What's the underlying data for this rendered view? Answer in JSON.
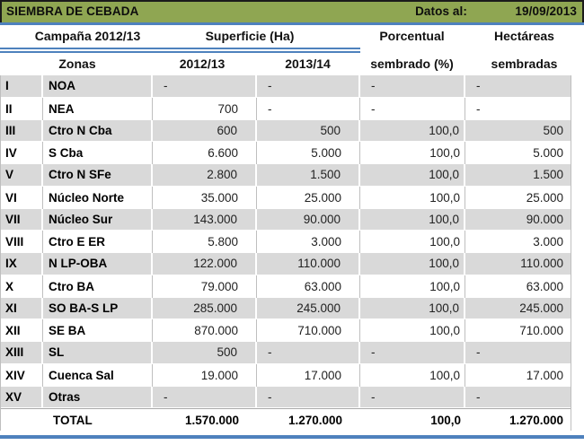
{
  "title_bar": {
    "title": "SIEMBRA DE CEBADA",
    "datos_label": "Datos al:",
    "date": "19/09/2013"
  },
  "header": {
    "campana": "Campaña 2012/13",
    "superficie": "Superficie (Ha)",
    "porcentual1": "Porcentual",
    "porcentual2": "sembrado (%)",
    "hectareas1": "Hectáreas",
    "hectareas2": "sembradas",
    "zonas": "Zonas",
    "y2012": "2012/13",
    "y2013": "2013/14"
  },
  "rows": [
    {
      "num": "I",
      "zone": "NOA",
      "s2012": "-",
      "s2013": "-",
      "pct": "-",
      "ha": "-"
    },
    {
      "num": "II",
      "zone": "NEA",
      "s2012": "700",
      "s2013": "-",
      "pct": "-",
      "ha": "-"
    },
    {
      "num": "III",
      "zone": "Ctro N Cba",
      "s2012": "600",
      "s2013": "500",
      "pct": "100,0",
      "ha": "500"
    },
    {
      "num": "IV",
      "zone": "S Cba",
      "s2012": "6.600",
      "s2013": "5.000",
      "pct": "100,0",
      "ha": "5.000"
    },
    {
      "num": "V",
      "zone": "Ctro N SFe",
      "s2012": "2.800",
      "s2013": "1.500",
      "pct": "100,0",
      "ha": "1.500"
    },
    {
      "num": "VI",
      "zone": "Núcleo Norte",
      "s2012": "35.000",
      "s2013": "25.000",
      "pct": "100,0",
      "ha": "25.000"
    },
    {
      "num": "VII",
      "zone": "Núcleo Sur",
      "s2012": "143.000",
      "s2013": "90.000",
      "pct": "100,0",
      "ha": "90.000"
    },
    {
      "num": "VIII",
      "zone": "Ctro E ER",
      "s2012": "5.800",
      "s2013": "3.000",
      "pct": "100,0",
      "ha": "3.000"
    },
    {
      "num": "IX",
      "zone": "N LP-OBA",
      "s2012": "122.000",
      "s2013": "110.000",
      "pct": "100,0",
      "ha": "110.000"
    },
    {
      "num": "X",
      "zone": "Ctro BA",
      "s2012": "79.000",
      "s2013": "63.000",
      "pct": "100,0",
      "ha": "63.000"
    },
    {
      "num": "XI",
      "zone": "SO BA-S LP",
      "s2012": "285.000",
      "s2013": "245.000",
      "pct": "100,0",
      "ha": "245.000"
    },
    {
      "num": "XII",
      "zone": "SE BA",
      "s2012": "870.000",
      "s2013": "710.000",
      "pct": "100,0",
      "ha": "710.000"
    },
    {
      "num": "XIII",
      "zone": "SL",
      "s2012": "500",
      "s2013": "-",
      "pct": "-",
      "ha": "-"
    },
    {
      "num": "XIV",
      "zone": "Cuenca Sal",
      "s2012": "19.000",
      "s2013": "17.000",
      "pct": "100,0",
      "ha": "17.000"
    },
    {
      "num": "XV",
      "zone": "Otras",
      "s2012": "-",
      "s2013": "-",
      "pct": "-",
      "ha": "-"
    }
  ],
  "total": {
    "label": "TOTAL",
    "s2012": "1.570.000",
    "s2013": "1.270.000",
    "pct": "100,0",
    "ha": "1.270.000"
  },
  "colors": {
    "green": "#8FA652",
    "blue": "#4E81BD",
    "stripe_gray": "#D9D9D9",
    "border_gray": "#BFBFBF"
  }
}
